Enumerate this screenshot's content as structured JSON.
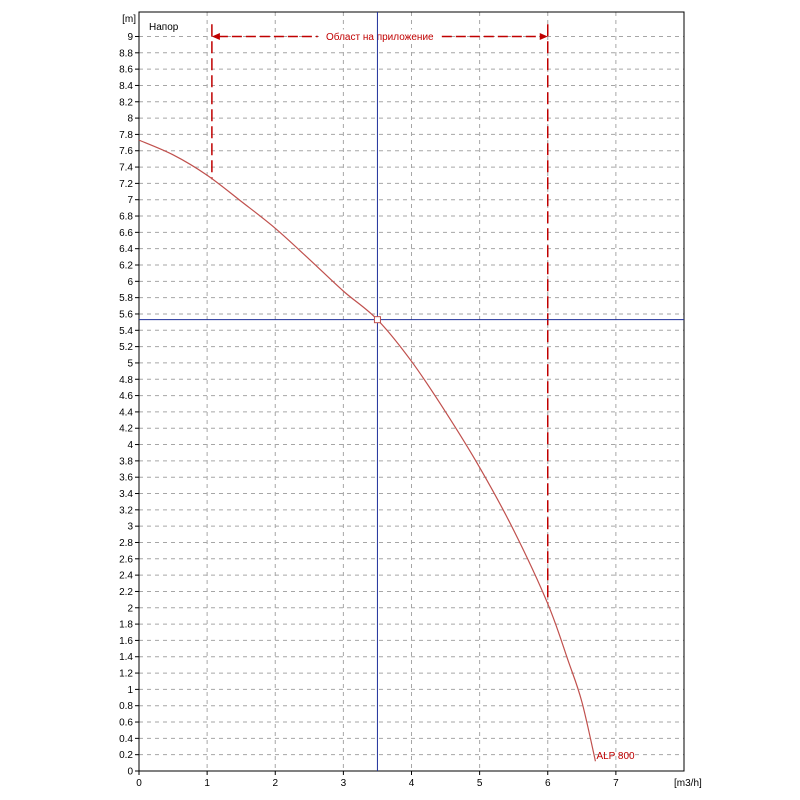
{
  "chart_data": {
    "type": "line",
    "title": "",
    "ylabel_title": "Напор",
    "y_unit": "[m]",
    "x_unit": "[m3/h]",
    "xlim": [
      0,
      8
    ],
    "ylim": [
      0,
      9.3
    ],
    "x_ticks": [
      0,
      1,
      2,
      3,
      4,
      5,
      6,
      7
    ],
    "y_tick_step": 0.2,
    "grid": true,
    "series": [
      {
        "name": "ALP 800",
        "color": "#c0504d",
        "x": [
          0,
          0.5,
          1,
          1.5,
          2,
          2.5,
          3,
          3.5,
          4,
          4.5,
          5,
          5.5,
          6,
          6.3,
          6.5,
          6.7
        ],
        "y": [
          7.73,
          7.55,
          7.3,
          6.98,
          6.65,
          6.27,
          5.88,
          5.53,
          5.02,
          4.4,
          3.72,
          2.95,
          2.05,
          1.35,
          0.85,
          0.12
        ]
      }
    ],
    "application_range": {
      "label": "Област на приложение",
      "x_start": 1.07,
      "x_end": 6.0,
      "y_arrow": 9.0,
      "y_start_bottom": 7.25,
      "y_end_bottom": 2.05,
      "color": "#c00000"
    },
    "operating_point": {
      "x": 3.5,
      "y": 5.53,
      "crosshair_color": "#1f2f9a"
    }
  }
}
